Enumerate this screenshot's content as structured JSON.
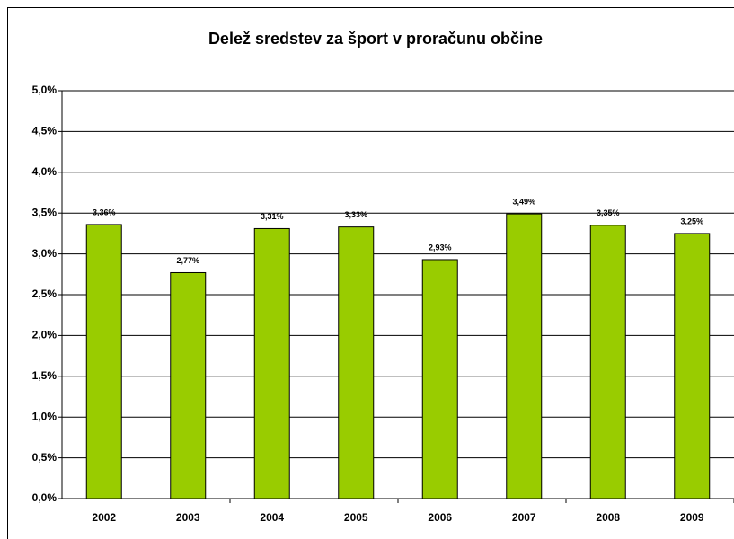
{
  "chart_data": {
    "type": "bar",
    "title": "Delež sredstev za šport v proračunu občine",
    "categories": [
      "2002",
      "2003",
      "2004",
      "2005",
      "2006",
      "2007",
      "2008",
      "2009"
    ],
    "values": [
      3.36,
      2.77,
      3.31,
      3.33,
      2.93,
      3.49,
      3.35,
      3.25
    ],
    "value_labels": [
      "3,36%",
      "2,77%",
      "3,31%",
      "3,33%",
      "2,93%",
      "3,49%",
      "3,35%",
      "3,25%"
    ],
    "color": "#99cc00",
    "ylim": [
      0,
      5
    ],
    "yticks": [
      {
        "value": 0,
        "label": "0,0%"
      },
      {
        "value": 0.5,
        "label": "0,5%"
      },
      {
        "value": 1,
        "label": "1,0%"
      },
      {
        "value": 1.5,
        "label": "1,5%"
      },
      {
        "value": 2,
        "label": "2,0%"
      },
      {
        "value": 2.5,
        "label": "2,5%"
      },
      {
        "value": 3,
        "label": "3,0%"
      },
      {
        "value": 3.5,
        "label": "3,5%"
      },
      {
        "value": 4,
        "label": "4,0%"
      },
      {
        "value": 4.5,
        "label": "4,5%"
      },
      {
        "value": 5,
        "label": "5,0%"
      }
    ],
    "grid": true
  }
}
